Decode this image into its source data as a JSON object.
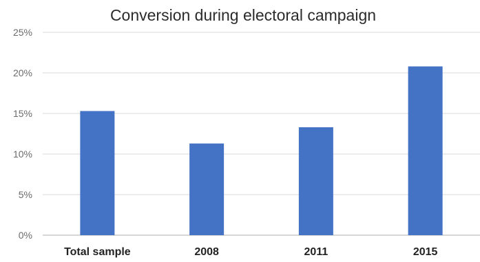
{
  "chart_data": {
    "type": "bar",
    "title": "Conversion during electoral campaign",
    "xlabel": "",
    "ylabel": "",
    "categories": [
      "Total sample",
      "2008",
      "2011",
      "2015"
    ],
    "values": [
      15.3,
      11.3,
      13.3,
      20.8
    ],
    "ylim": [
      0,
      25
    ],
    "yticks": [
      0,
      5,
      10,
      15,
      20,
      25
    ],
    "ytick_labels": [
      "0%",
      "5%",
      "10%",
      "15%",
      "20%",
      "25%"
    ],
    "grid": true,
    "legend": "none",
    "bar_color": "#4472C4"
  }
}
